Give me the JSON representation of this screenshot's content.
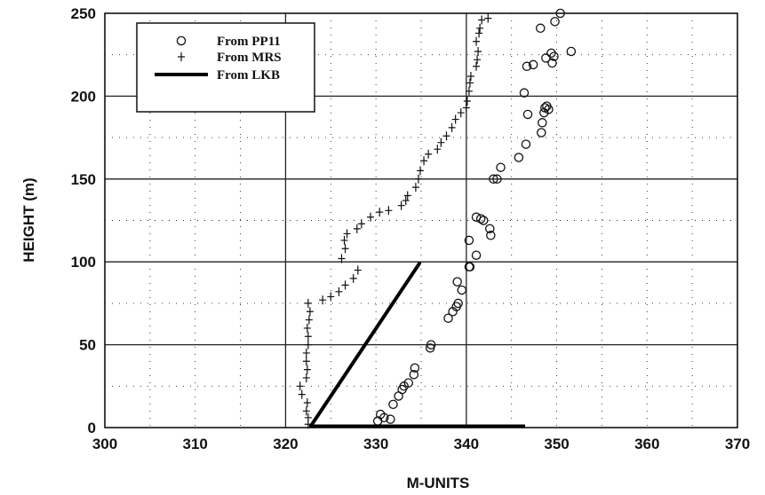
{
  "chart_data": {
    "type": "scatter",
    "title": "",
    "xlabel": "M-UNITS",
    "ylabel": "HEIGHT (m)",
    "xlim": [
      300,
      370
    ],
    "ylim": [
      0,
      250
    ],
    "x_ticks": [
      300,
      310,
      320,
      330,
      340,
      350,
      360,
      370
    ],
    "y_ticks": [
      0,
      50,
      100,
      150,
      200,
      250
    ],
    "grid": "solid at 320, 340 and every 50 m; dotted elsewhere",
    "legend_position": "top-left",
    "series": [
      {
        "name": "From PP11",
        "marker": "open-circle",
        "color": "#111111",
        "points": [
          [
            330.2,
            4
          ],
          [
            330.5,
            8
          ],
          [
            330.9,
            6
          ],
          [
            331.6,
            5
          ],
          [
            331.9,
            14
          ],
          [
            332.5,
            19
          ],
          [
            332.9,
            23
          ],
          [
            333.1,
            25
          ],
          [
            333.6,
            27
          ],
          [
            334.2,
            32
          ],
          [
            334.3,
            36
          ],
          [
            336.0,
            48
          ],
          [
            336.1,
            50
          ],
          [
            338.0,
            66
          ],
          [
            338.5,
            70
          ],
          [
            338.9,
            73
          ],
          [
            339.1,
            75
          ],
          [
            339.0,
            88
          ],
          [
            339.5,
            83
          ],
          [
            340.3,
            97
          ],
          [
            340.4,
            97
          ],
          [
            341.1,
            104
          ],
          [
            340.3,
            113
          ],
          [
            341.1,
            127
          ],
          [
            341.6,
            126
          ],
          [
            341.9,
            125
          ],
          [
            342.6,
            120
          ],
          [
            342.7,
            116
          ],
          [
            343.0,
            150
          ],
          [
            343.4,
            150
          ],
          [
            343.8,
            157
          ],
          [
            345.8,
            163
          ],
          [
            346.6,
            171
          ],
          [
            348.3,
            178
          ],
          [
            348.4,
            184
          ],
          [
            348.6,
            190
          ],
          [
            348.7,
            193
          ],
          [
            348.9,
            194
          ],
          [
            349.1,
            192
          ],
          [
            346.8,
            189
          ],
          [
            346.4,
            202
          ],
          [
            346.7,
            218
          ],
          [
            347.4,
            219
          ],
          [
            348.8,
            223
          ],
          [
            349.5,
            220
          ],
          [
            349.4,
            226
          ],
          [
            349.7,
            224
          ],
          [
            351.6,
            227
          ],
          [
            348.2,
            241
          ],
          [
            349.8,
            245
          ],
          [
            350.4,
            250
          ]
        ]
      },
      {
        "name": "From MRS",
        "marker": "plus",
        "color": "#111111",
        "points": [
          [
            322.5,
            2
          ],
          [
            322.5,
            6
          ],
          [
            322.3,
            10
          ],
          [
            322.4,
            15
          ],
          [
            321.8,
            20
          ],
          [
            321.6,
            25
          ],
          [
            322.3,
            30
          ],
          [
            322.4,
            35
          ],
          [
            322.3,
            40
          ],
          [
            322.3,
            45
          ],
          [
            322.5,
            50
          ],
          [
            322.5,
            55
          ],
          [
            322.4,
            60
          ],
          [
            322.6,
            65
          ],
          [
            322.7,
            70
          ],
          [
            322.5,
            75
          ],
          [
            324.1,
            77
          ],
          [
            325.0,
            79
          ],
          [
            325.9,
            82
          ],
          [
            326.6,
            86
          ],
          [
            327.5,
            90
          ],
          [
            328.0,
            95
          ],
          [
            326.2,
            102
          ],
          [
            326.6,
            108
          ],
          [
            326.5,
            113
          ],
          [
            326.8,
            117
          ],
          [
            327.9,
            120
          ],
          [
            328.4,
            123
          ],
          [
            329.4,
            127
          ],
          [
            330.4,
            130
          ],
          [
            331.4,
            131
          ],
          [
            332.8,
            134
          ],
          [
            333.3,
            137
          ],
          [
            333.5,
            140
          ],
          [
            334.4,
            145
          ],
          [
            334.7,
            150
          ],
          [
            334.9,
            155
          ],
          [
            335.3,
            161
          ],
          [
            335.8,
            165
          ],
          [
            336.8,
            168
          ],
          [
            337.2,
            172
          ],
          [
            337.8,
            176
          ],
          [
            338.4,
            181
          ],
          [
            338.8,
            186
          ],
          [
            339.4,
            190
          ],
          [
            340.0,
            193
          ],
          [
            340.1,
            197
          ],
          [
            340.3,
            203
          ],
          [
            340.4,
            208
          ],
          [
            340.5,
            212
          ],
          [
            341.1,
            218
          ],
          [
            341.2,
            222
          ],
          [
            341.3,
            227
          ],
          [
            341.1,
            233
          ],
          [
            341.4,
            238
          ],
          [
            341.5,
            241
          ],
          [
            341.7,
            246
          ],
          [
            342.4,
            247
          ]
        ]
      },
      {
        "name": "From LKB",
        "marker": "line",
        "color": "#000000",
        "points": [
          [
            322.8,
            1
          ],
          [
            334.8,
            99
          ]
        ]
      }
    ],
    "annotations": [
      {
        "type": "segment",
        "x1": 322.8,
        "y1": 0.3,
        "x2": 346.5,
        "y2": 0.3,
        "color": "#000000"
      }
    ]
  }
}
